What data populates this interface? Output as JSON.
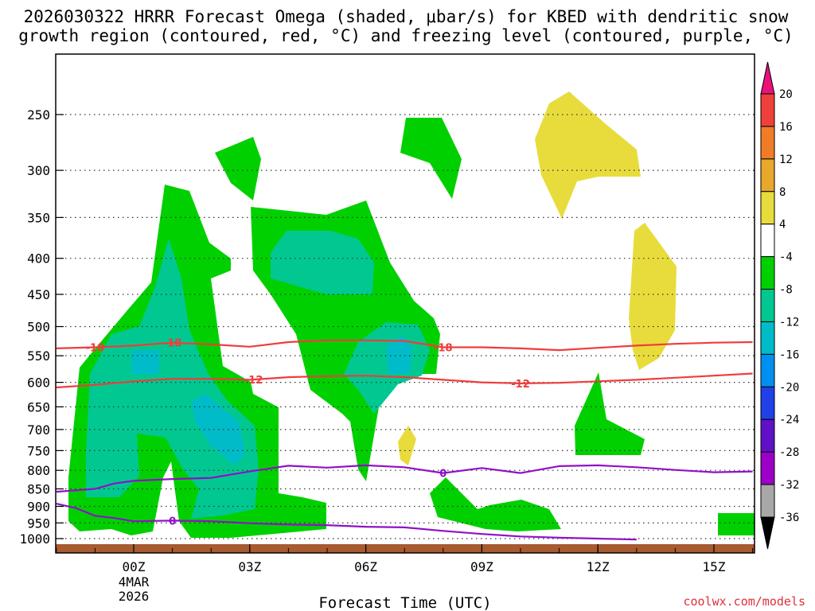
{
  "title_line1": "2026030322 HRRR Forecast Omega (shaded, μbar/s) for KBED with dendritic snow",
  "title_line2": "growth region (contoured, red, °C) and freezing level (contoured, purple, °C)",
  "credit": "coolwx.com/models",
  "chart_data": {
    "type": "time-height contour (filled omega + line contours)",
    "xlabel": "Forecast Time (UTC)",
    "x_ticks": [
      {
        "hour": 0,
        "label": "00Z"
      },
      {
        "hour": 3,
        "label": "03Z"
      },
      {
        "hour": 6,
        "label": "06Z"
      },
      {
        "hour": 9,
        "label": "09Z"
      },
      {
        "hour": 12,
        "label": "12Z"
      },
      {
        "hour": 15,
        "label": "15Z"
      }
    ],
    "x_date_label": [
      "4MAR",
      "2026"
    ],
    "x_range_hours": [
      -2,
      16
    ],
    "ylabel": "",
    "y_scale": "log (pressure, hPa)",
    "y_ticks": [
      250,
      300,
      350,
      400,
      450,
      500,
      550,
      600,
      650,
      700,
      750,
      800,
      850,
      900,
      950,
      1000
    ],
    "y_range_hpa": [
      200,
      1030
    ],
    "grid": "dotted at each pressure level",
    "colorbar_levels": [
      "20",
      "16",
      "12",
      "8",
      "4",
      "-4",
      "-8",
      "-12",
      "-16",
      "-20",
      "-24",
      "-28",
      "-32",
      "-36"
    ],
    "colorbar_colors": {
      "gt20": "#e8127a",
      "16_20": "#f0403c",
      "12_16": "#f07c28",
      "8_12": "#e8a82c",
      "4_8": "#e8dc3c",
      "-4_4": "#ffffff",
      "-8_-4": "#00d000",
      "-12_-8": "#00c890",
      "-16_-12": "#00bcc8",
      "-20_-16": "#0090f0",
      "-24_-20": "#2040e8",
      "-28_-24": "#6010c8",
      "-32_-28": "#9c00c8",
      "-36_-32": "#a8a8a8",
      "lt-36": "#000000"
    },
    "red_contours": [
      {
        "label": "-18",
        "label_positions_hours": [
          -1.0,
          1.0,
          8.0
        ],
        "points": [
          [
            -2,
            537
          ],
          [
            -1,
            535
          ],
          [
            0,
            532
          ],
          [
            1,
            527
          ],
          [
            2,
            530
          ],
          [
            3,
            534
          ],
          [
            4,
            526
          ],
          [
            5,
            523
          ],
          [
            6,
            523
          ],
          [
            7,
            524
          ],
          [
            8,
            535
          ],
          [
            9,
            535
          ],
          [
            10,
            537
          ],
          [
            11,
            540
          ],
          [
            12,
            536
          ],
          [
            13,
            532
          ],
          [
            14,
            529
          ],
          [
            15,
            527
          ],
          [
            16,
            526
          ]
        ]
      },
      {
        "label": "-12",
        "label_positions_hours": [
          3.1,
          10.0
        ],
        "points": [
          [
            -2,
            610
          ],
          [
            -1,
            605
          ],
          [
            0,
            598
          ],
          [
            1,
            593
          ],
          [
            2,
            593
          ],
          [
            3,
            595
          ],
          [
            4,
            590
          ],
          [
            5,
            588
          ],
          [
            6,
            587
          ],
          [
            7,
            590
          ],
          [
            8,
            595
          ],
          [
            9,
            600
          ],
          [
            10,
            602
          ],
          [
            11,
            601
          ],
          [
            12,
            598
          ],
          [
            13,
            595
          ],
          [
            14,
            591
          ],
          [
            15,
            587
          ],
          [
            16,
            583
          ]
        ]
      }
    ],
    "purple_contours": [
      {
        "label": "0",
        "label_positions_hours": [
          8.0
        ],
        "points": [
          [
            -2,
            858
          ],
          [
            -1,
            850
          ],
          [
            -0.5,
            835
          ],
          [
            0,
            828
          ],
          [
            1,
            823
          ],
          [
            2,
            820
          ],
          [
            3,
            803
          ],
          [
            4,
            788
          ],
          [
            5,
            793
          ],
          [
            6,
            787
          ],
          [
            7,
            792
          ],
          [
            8,
            807
          ],
          [
            9,
            794
          ],
          [
            10,
            807
          ],
          [
            11,
            789
          ],
          [
            12,
            787
          ],
          [
            13,
            792
          ],
          [
            14,
            799
          ],
          [
            15,
            805
          ],
          [
            16,
            803
          ]
        ]
      },
      {
        "label": "0",
        "label_positions_hours": [
          1.0
        ],
        "points": [
          [
            -2,
            892
          ],
          [
            -1.5,
            905
          ],
          [
            -1,
            928
          ],
          [
            -0.5,
            935
          ],
          [
            0,
            945
          ],
          [
            1,
            943
          ],
          [
            2,
            945
          ],
          [
            3,
            951
          ],
          [
            4,
            955
          ],
          [
            5,
            957
          ],
          [
            6,
            962
          ],
          [
            7,
            964
          ],
          [
            8,
            975
          ],
          [
            9,
            985
          ],
          [
            10,
            993
          ],
          [
            11,
            997
          ],
          [
            12,
            1000
          ],
          [
            13,
            1003
          ]
        ]
      }
    ],
    "omega_areas_approx": [
      {
        "range": "-8 to -4",
        "description": "large rising-motion region 22Z-03Z from 950 to 330 hPa"
      },
      {
        "range": "-12 to -8",
        "description": "cores near 00Z-03Z 500-850 hPa and 04Z-06Z 380-420 hPa"
      },
      {
        "range": "-16 to -12",
        "description": "small cores near 00Z 550 hPa, 02Z 670 hPa, 07Z 550 hPa"
      },
      {
        "range": "4 to 8",
        "description": "sinking areas near 11-12Z 250-340 hPa, 13Z 400-560 hPa, 07Z 740-790 hPa"
      }
    ]
  }
}
